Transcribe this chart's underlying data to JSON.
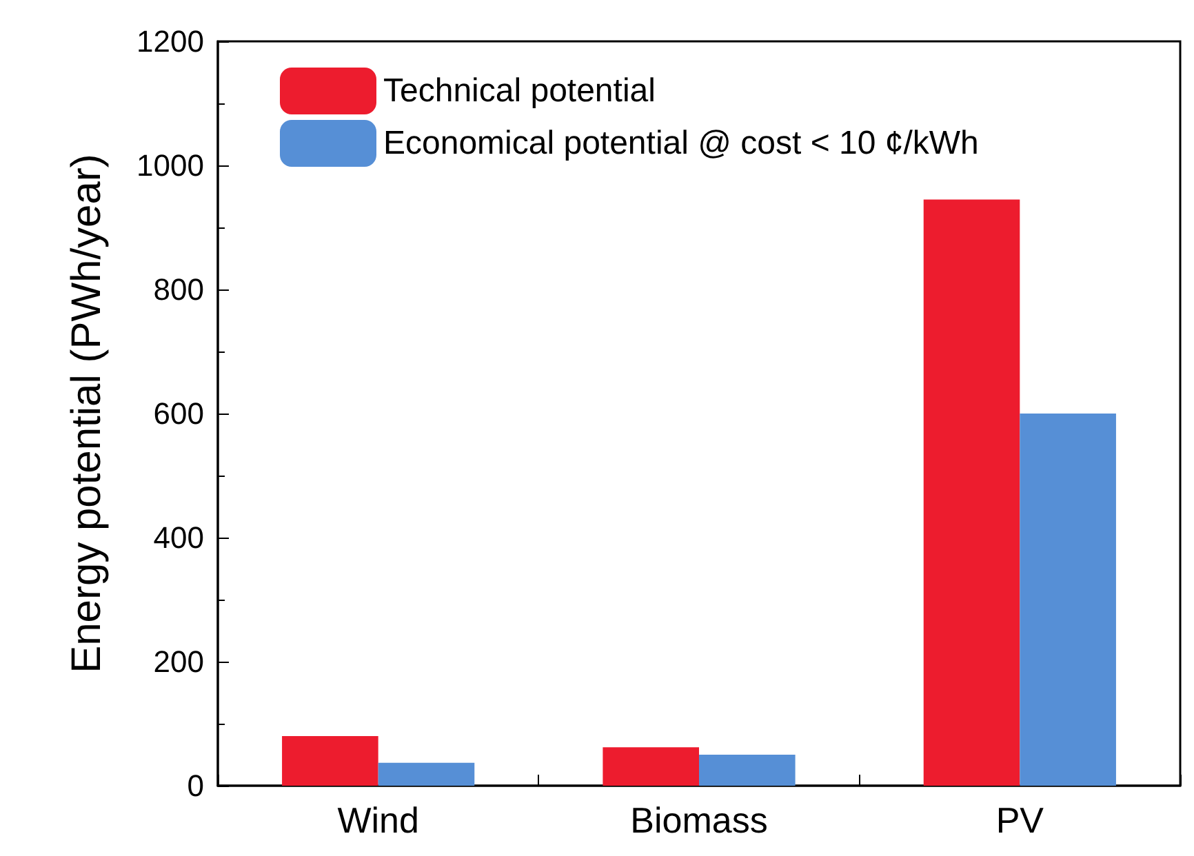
{
  "chart_data": {
    "type": "bar",
    "ylabel": "Energy potential (PWh/year)",
    "categories": [
      "Wind",
      "Biomass",
      "PV"
    ],
    "series": [
      {
        "name": "Technical potential",
        "color": "#ed1c2e",
        "values": [
          80,
          62,
          945
        ]
      },
      {
        "name": "Economical potential @ cost < 10 ¢/kWh",
        "color": "#568fd6",
        "values": [
          37,
          50,
          600
        ]
      }
    ],
    "ylim": [
      0,
      1200
    ],
    "yticks": [
      0,
      200,
      400,
      600,
      800,
      1000,
      1200
    ],
    "grid": false,
    "legend": "top left"
  }
}
